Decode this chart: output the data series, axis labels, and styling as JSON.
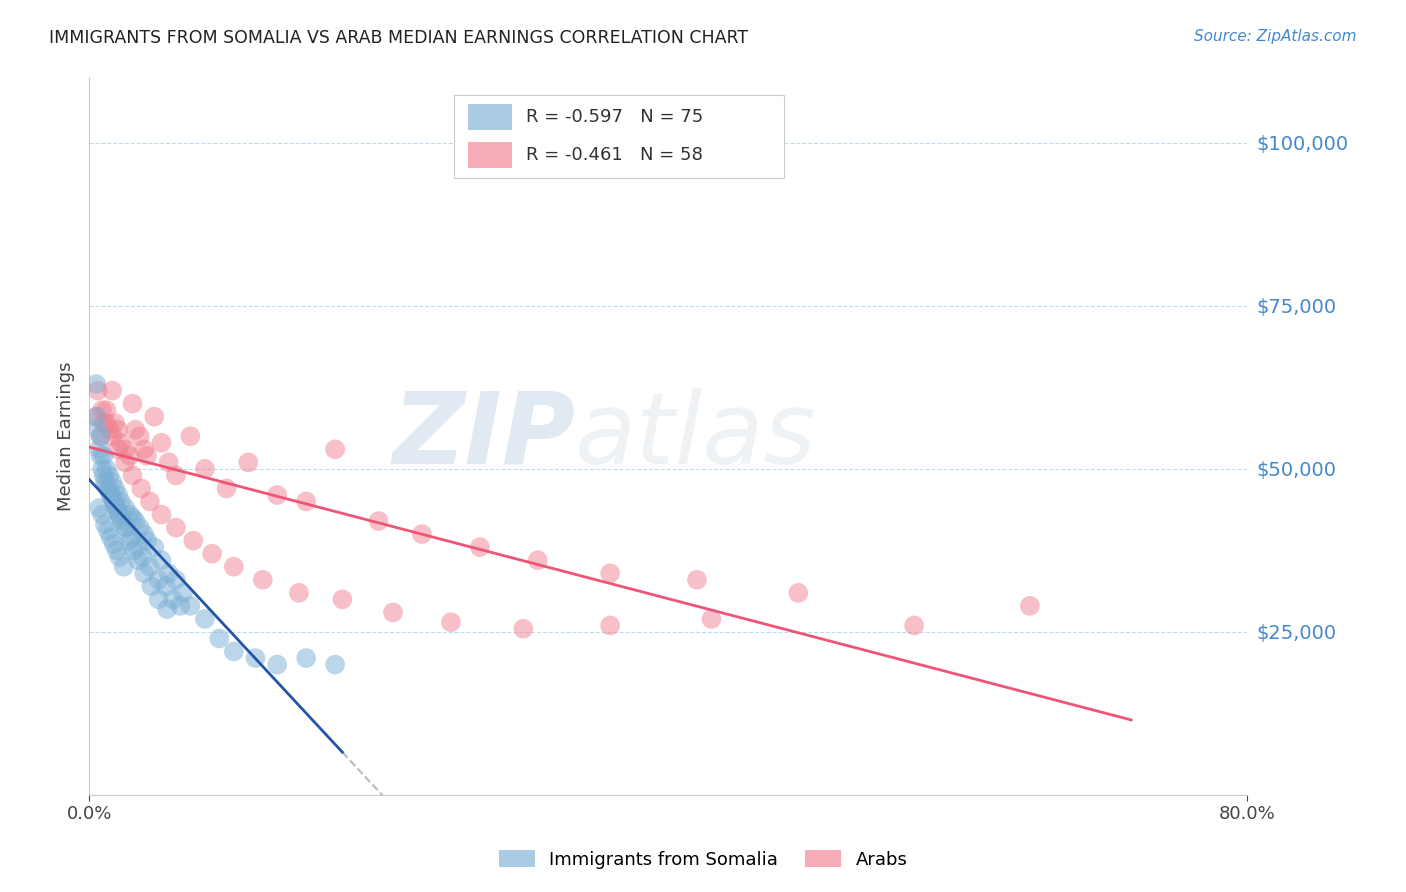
{
  "title": "IMMIGRANTS FROM SOMALIA VS ARAB MEDIAN EARNINGS CORRELATION CHART",
  "source": "Source: ZipAtlas.com",
  "ylabel": "Median Earnings",
  "ytick_labels": [
    "$25,000",
    "$50,000",
    "$75,000",
    "$100,000"
  ],
  "ytick_values": [
    25000,
    50000,
    75000,
    100000
  ],
  "ymin": 0,
  "ymax": 110000,
  "xmin": 0.0,
  "xmax": 0.8,
  "somalia_color": "#7BAFD4",
  "arab_color": "#F08090",
  "trendline_somalia_color": "#2255AA",
  "trendline_arab_color": "#EE5577",
  "somalia_x": [
    0.005,
    0.008,
    0.01,
    0.012,
    0.014,
    0.016,
    0.018,
    0.02,
    0.022,
    0.025,
    0.028,
    0.03,
    0.032,
    0.035,
    0.038,
    0.04,
    0.045,
    0.05,
    0.055,
    0.06,
    0.065,
    0.07,
    0.08,
    0.09,
    0.1,
    0.115,
    0.13,
    0.15,
    0.17,
    0.005,
    0.007,
    0.009,
    0.011,
    0.013,
    0.015,
    0.017,
    0.019,
    0.021,
    0.023,
    0.026,
    0.029,
    0.033,
    0.037,
    0.042,
    0.048,
    0.053,
    0.058,
    0.063,
    0.006,
    0.008,
    0.01,
    0.012,
    0.014,
    0.016,
    0.018,
    0.02,
    0.022,
    0.025,
    0.028,
    0.031,
    0.034,
    0.038,
    0.043,
    0.048,
    0.054,
    0.007,
    0.009,
    0.011,
    0.013,
    0.015,
    0.017,
    0.019,
    0.021,
    0.024
  ],
  "somalia_y": [
    63000,
    55000,
    52000,
    50000,
    49000,
    48000,
    47000,
    46000,
    45000,
    44000,
    43000,
    42500,
    42000,
    41000,
    40000,
    39000,
    38000,
    36000,
    34000,
    33000,
    31000,
    29000,
    27000,
    24000,
    22000,
    21000,
    20000,
    21000,
    20000,
    58000,
    53000,
    50000,
    48000,
    47000,
    46000,
    45000,
    44000,
    43000,
    42000,
    41000,
    39500,
    38000,
    36500,
    35000,
    33000,
    32000,
    30000,
    29000,
    56000,
    52000,
    49000,
    47500,
    46500,
    45500,
    44500,
    43500,
    42500,
    41000,
    39000,
    37500,
    36000,
    34000,
    32000,
    30000,
    28500,
    44000,
    43000,
    41500,
    40500,
    39500,
    38500,
    37500,
    36500,
    35000
  ],
  "arab_x": [
    0.005,
    0.008,
    0.01,
    0.012,
    0.014,
    0.016,
    0.018,
    0.02,
    0.022,
    0.025,
    0.028,
    0.03,
    0.032,
    0.035,
    0.038,
    0.04,
    0.045,
    0.05,
    0.055,
    0.06,
    0.07,
    0.08,
    0.095,
    0.11,
    0.13,
    0.15,
    0.17,
    0.2,
    0.23,
    0.27,
    0.31,
    0.36,
    0.42,
    0.49,
    0.57,
    0.65,
    0.006,
    0.009,
    0.012,
    0.016,
    0.02,
    0.025,
    0.03,
    0.036,
    0.042,
    0.05,
    0.06,
    0.072,
    0.085,
    0.1,
    0.12,
    0.145,
    0.175,
    0.21,
    0.25,
    0.3,
    0.36,
    0.43
  ],
  "arab_y": [
    58000,
    55000,
    57000,
    59000,
    56000,
    62000,
    57000,
    56000,
    54000,
    53000,
    52000,
    60000,
    56000,
    55000,
    53000,
    52000,
    58000,
    54000,
    51000,
    49000,
    55000,
    50000,
    47000,
    51000,
    46000,
    45000,
    53000,
    42000,
    40000,
    38000,
    36000,
    34000,
    33000,
    31000,
    26000,
    29000,
    62000,
    59000,
    57000,
    55000,
    53000,
    51000,
    49000,
    47000,
    45000,
    43000,
    41000,
    39000,
    37000,
    35000,
    33000,
    31000,
    30000,
    28000,
    26500,
    25500,
    26000,
    27000
  ]
}
